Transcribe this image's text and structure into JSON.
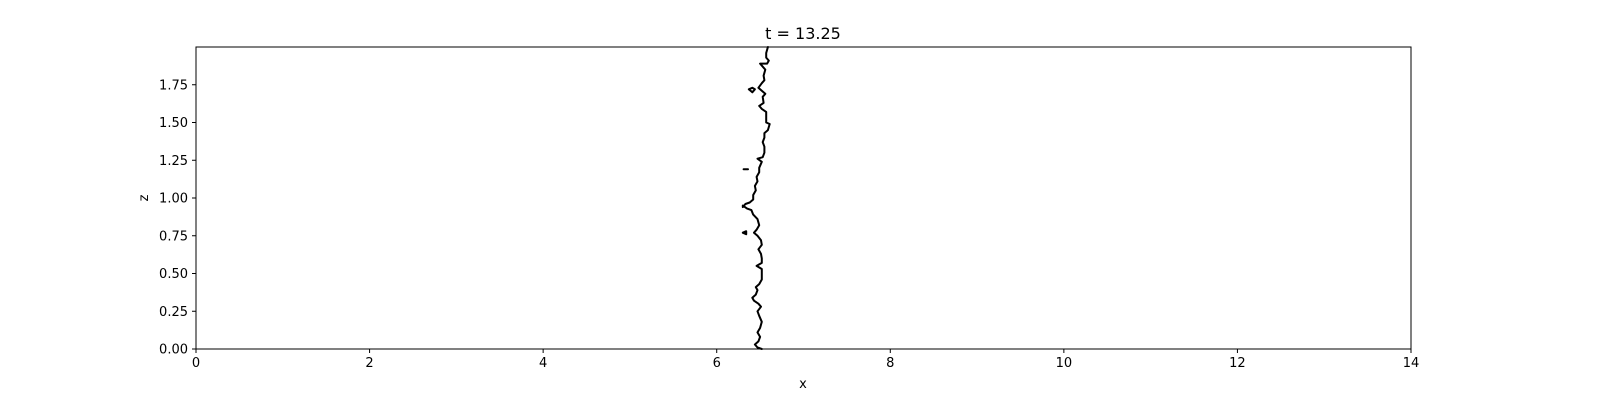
{
  "chart_data": {
    "type": "line",
    "title": "t = 13.25",
    "xlabel": "x",
    "ylabel": "z",
    "xlim": [
      0,
      14
    ],
    "ylim": [
      0,
      2
    ],
    "x_ticks": [
      0,
      2,
      4,
      6,
      8,
      10,
      12,
      14
    ],
    "x_tick_labels": [
      "0",
      "2",
      "4",
      "6",
      "8",
      "10",
      "12",
      "14"
    ],
    "y_ticks": [
      0,
      0.25,
      0.5,
      0.75,
      1.0,
      1.25,
      1.5,
      1.75
    ],
    "y_tick_labels": [
      "0.00",
      "0.25",
      "0.50",
      "0.75",
      "1.00",
      "1.25",
      "1.50",
      "1.75"
    ],
    "grid": false,
    "line_color": "#000000",
    "series": [
      {
        "points": [
          [
            6.52,
            0.0
          ],
          [
            6.47,
            0.01
          ],
          [
            6.44,
            0.03
          ],
          [
            6.48,
            0.05
          ],
          [
            6.5,
            0.08
          ],
          [
            6.47,
            0.11
          ],
          [
            6.5,
            0.14
          ],
          [
            6.52,
            0.18
          ],
          [
            6.49,
            0.22
          ],
          [
            6.47,
            0.25
          ],
          [
            6.51,
            0.28
          ],
          [
            6.48,
            0.3
          ],
          [
            6.43,
            0.32
          ],
          [
            6.41,
            0.34
          ],
          [
            6.45,
            0.36
          ],
          [
            6.47,
            0.39
          ],
          [
            6.45,
            0.41
          ],
          [
            6.49,
            0.43
          ],
          [
            6.52,
            0.46
          ],
          [
            6.52,
            0.5
          ],
          [
            6.52,
            0.53
          ],
          [
            6.46,
            0.55
          ],
          [
            6.52,
            0.57
          ],
          [
            6.52,
            0.6
          ],
          [
            6.51,
            0.63
          ],
          [
            6.48,
            0.66
          ],
          [
            6.52,
            0.69
          ],
          [
            6.51,
            0.72
          ],
          [
            6.47,
            0.75
          ],
          [
            6.43,
            0.77
          ],
          [
            6.46,
            0.79
          ],
          [
            6.49,
            0.82
          ],
          [
            6.47,
            0.86
          ],
          [
            6.42,
            0.89
          ],
          [
            6.4,
            0.92
          ],
          [
            6.35,
            0.93
          ],
          [
            6.3,
            0.95
          ],
          [
            6.3,
            0.94
          ],
          [
            6.33,
            0.96
          ],
          [
            6.38,
            0.97
          ],
          [
            6.42,
            0.99
          ],
          [
            6.42,
            1.02
          ],
          [
            6.45,
            1.05
          ],
          [
            6.44,
            1.08
          ],
          [
            6.47,
            1.11
          ],
          [
            6.46,
            1.14
          ],
          [
            6.49,
            1.17
          ],
          [
            6.49,
            1.2
          ],
          [
            6.52,
            1.24
          ],
          [
            6.47,
            1.26
          ],
          [
            6.53,
            1.27
          ],
          [
            6.55,
            1.3
          ],
          [
            6.55,
            1.34
          ],
          [
            6.53,
            1.37
          ],
          [
            6.55,
            1.4
          ],
          [
            6.55,
            1.43
          ],
          [
            6.59,
            1.45
          ],
          [
            6.61,
            1.49
          ],
          [
            6.57,
            1.5
          ],
          [
            6.57,
            1.54
          ],
          [
            6.57,
            1.57
          ],
          [
            6.52,
            1.59
          ],
          [
            6.49,
            1.61
          ],
          [
            6.54,
            1.63
          ],
          [
            6.53,
            1.67
          ],
          [
            6.56,
            1.69
          ],
          [
            6.52,
            1.71
          ],
          [
            6.48,
            1.73
          ],
          [
            6.52,
            1.76
          ],
          [
            6.55,
            1.78
          ],
          [
            6.54,
            1.81
          ],
          [
            6.56,
            1.85
          ],
          [
            6.5,
            1.89
          ],
          [
            6.58,
            1.89
          ],
          [
            6.6,
            1.91
          ],
          [
            6.57,
            1.93
          ],
          [
            6.57,
            1.96
          ],
          [
            6.59,
            2.0
          ]
        ]
      },
      {
        "points": [
          [
            6.37,
            1.72
          ],
          [
            6.41,
            1.7
          ],
          [
            6.44,
            1.72
          ],
          [
            6.41,
            1.73
          ],
          [
            6.37,
            1.72
          ]
        ]
      },
      {
        "points": [
          [
            6.31,
            1.19
          ],
          [
            6.36,
            1.19
          ]
        ]
      },
      {
        "points": [
          [
            6.3,
            0.77
          ],
          [
            6.34,
            0.76
          ],
          [
            6.34,
            0.78
          ],
          [
            6.3,
            0.77
          ]
        ]
      }
    ]
  }
}
